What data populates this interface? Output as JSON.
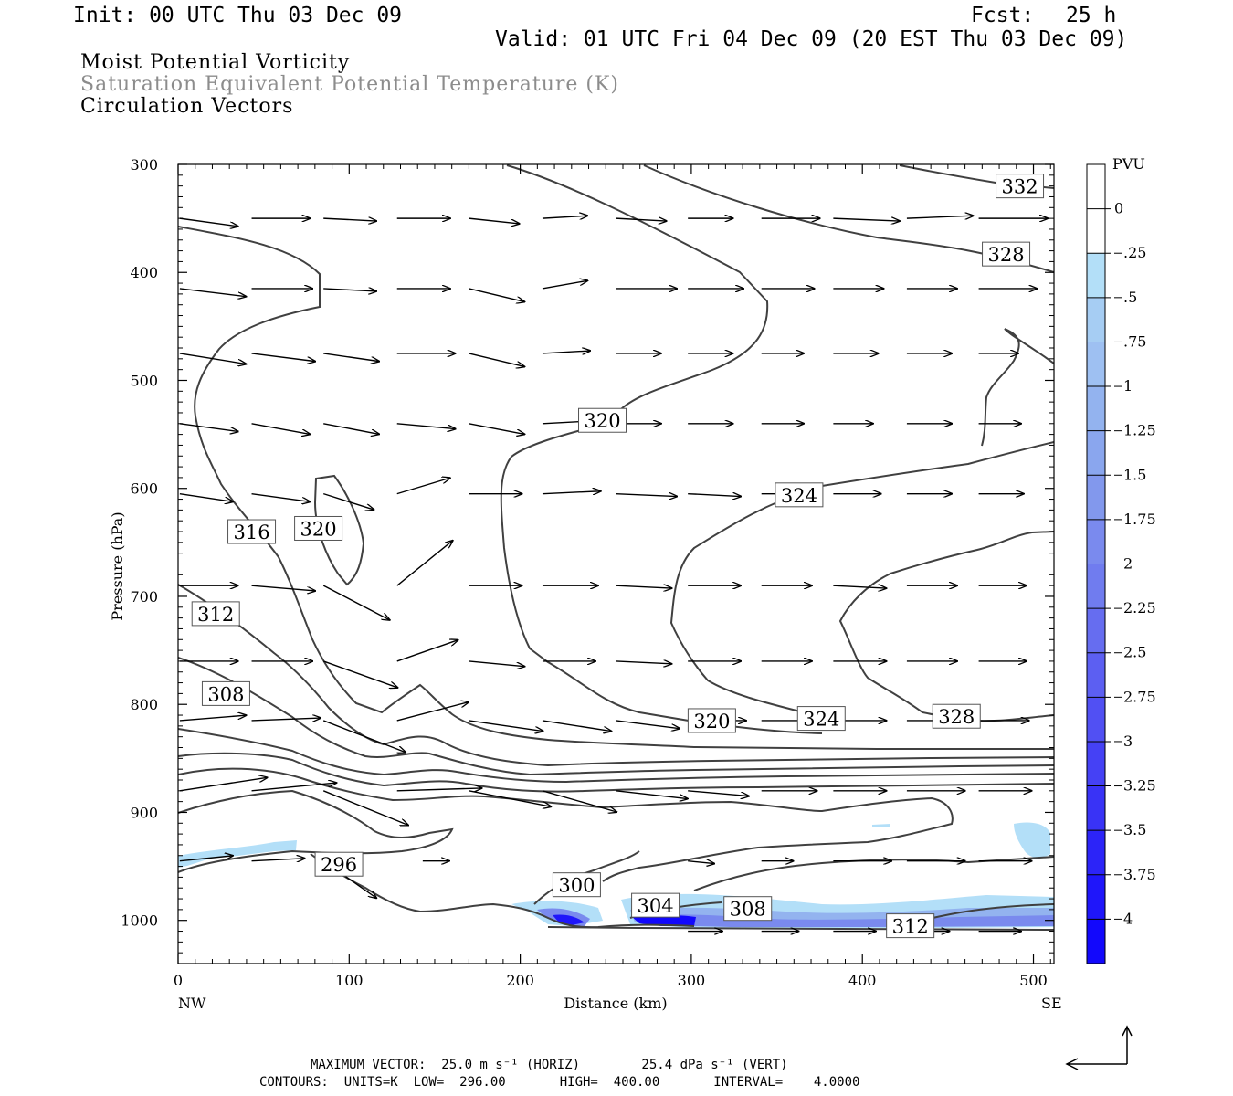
{
  "header": {
    "init": "Init: 00 UTC Thu 03 Dec 09",
    "fcst_label": "Fcst:",
    "fcst_value": "25 h",
    "valid": "Valid: 01 UTC Fri 04 Dec 09 (20 EST Thu 03 Dec 09)",
    "field1": "Moist Potential Vorticity",
    "field2": "Saturation Equivalent Potential Temperature (K)",
    "field3": "Circulation Vectors"
  },
  "colors": {
    "contour": "#404040",
    "vector": "#000000",
    "pv_shades": [
      "#ffffff",
      "#ffffff",
      "#b3dff8",
      "#a6cdf3",
      "#9ec0f2",
      "#93b3ef",
      "#8aa6ee",
      "#8298ed",
      "#7a8aee",
      "#707cef",
      "#666df0",
      "#5c5ff2",
      "#5150f3",
      "#4541f5",
      "#3933f6",
      "#2c24f8",
      "#1f16fa",
      "#1208fc"
    ]
  },
  "chart_data": {
    "type": "cross-section",
    "xlabel": "Distance (km)",
    "ylabel": "Pressure (hPa)",
    "xlim": [
      0,
      512
    ],
    "ylim": [
      1040,
      300
    ],
    "x_ticks": [
      "0",
      "100",
      "200",
      "300",
      "400",
      "500"
    ],
    "x_tick_values": [
      0,
      100,
      200,
      300,
      400,
      500
    ],
    "x_end_labels": {
      "left": "NW",
      "right": "SE"
    },
    "y_ticks": [
      "300",
      "400",
      "500",
      "600",
      "700",
      "800",
      "900",
      "1000"
    ],
    "y_tick_values": [
      300,
      400,
      500,
      600,
      700,
      800,
      900,
      1000
    ],
    "colorbar": {
      "units": "PVU",
      "labels": [
        "0",
        "-.25",
        "-.5",
        "-.75",
        "-1",
        "-1.25",
        "-1.5",
        "-1.75",
        "-2",
        "-2.25",
        "-2.5",
        "-2.75",
        "-3",
        "-3.25",
        "-3.5",
        "-3.75",
        "-4"
      ]
    },
    "contour_labels": [
      {
        "text": "332",
        "x": 492,
        "p": 320
      },
      {
        "text": "328",
        "x": 484,
        "p": 383
      },
      {
        "text": "320",
        "x": 248,
        "p": 537
      },
      {
        "text": "324",
        "x": 363,
        "p": 606
      },
      {
        "text": "316",
        "x": 43,
        "p": 640
      },
      {
        "text": "320",
        "x": 82,
        "p": 637
      },
      {
        "text": "312",
        "x": 22,
        "p": 716
      },
      {
        "text": "308",
        "x": 28,
        "p": 790
      },
      {
        "text": "320",
        "x": 312,
        "p": 815
      },
      {
        "text": "324",
        "x": 376,
        "p": 813
      },
      {
        "text": "328",
        "x": 455,
        "p": 811
      },
      {
        "text": "296",
        "x": 94,
        "p": 948
      },
      {
        "text": "300",
        "x": 233,
        "p": 967
      },
      {
        "text": "304",
        "x": 279,
        "p": 986
      },
      {
        "text": "308",
        "x": 333,
        "p": 989
      },
      {
        "text": "312",
        "x": 428,
        "p": 1005
      }
    ],
    "footer": {
      "max_vector": "MAXIMUM VECTOR:  25.0 m s⁻¹ (HORIZ)        25.4 dPa s⁻¹ (VERT)",
      "contours": "CONTOURS:  UNITS=K  LOW=  296.00       HIGH=  400.00       INTERVAL=    4.0000"
    }
  }
}
